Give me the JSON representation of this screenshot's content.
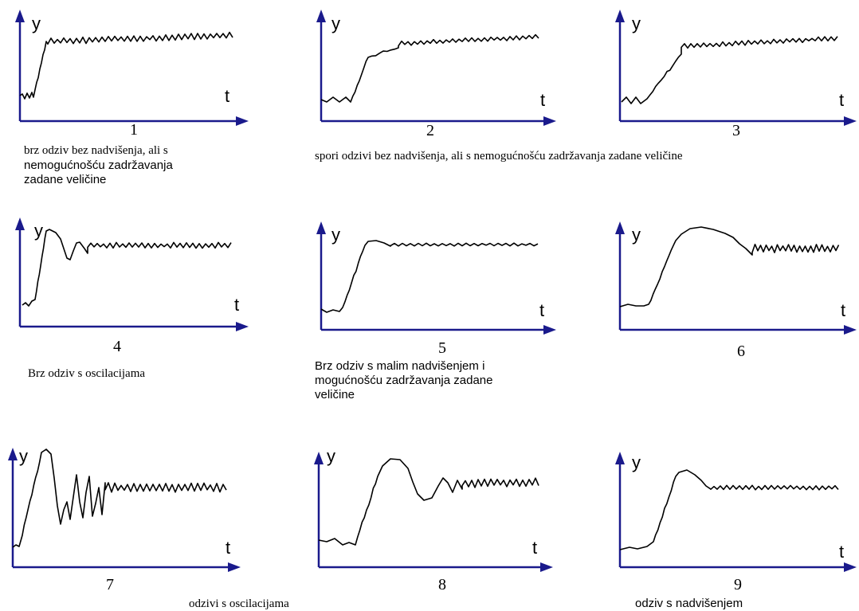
{
  "axis_color": "#1a1a8c",
  "curve_color": "#000000",
  "panels": [
    {
      "number": "1",
      "y_label": "y",
      "t_label": "t",
      "shape": "fast-noovershoot"
    },
    {
      "number": "2",
      "y_label": "y",
      "t_label": "t",
      "shape": "slow-1"
    },
    {
      "number": "3",
      "y_label": "y",
      "t_label": "t",
      "shape": "slow-2"
    },
    {
      "number": "4",
      "y_label": "y",
      "t_label": "t",
      "shape": "fast-osc"
    },
    {
      "number": "5",
      "y_label": "y",
      "t_label": "t",
      "shape": "small-overshoot"
    },
    {
      "number": "6",
      "y_label": "y",
      "t_label": "t",
      "shape": "big-overshoot-noise"
    },
    {
      "number": "7",
      "y_label": "y",
      "t_label": "t",
      "shape": "osc-strong"
    },
    {
      "number": "8",
      "y_label": "y",
      "t_label": "t",
      "shape": "osc-wave"
    },
    {
      "number": "9",
      "y_label": "y",
      "t_label": "t",
      "shape": "overshoot"
    }
  ],
  "captions": {
    "c1": [
      "brz odziv bez nadvišenja, ali s",
      "nemogućnošću zadržavanja",
      "zadane veličine"
    ],
    "c23": "spori odzivi bez nadvišenja, ali s nemogućnošću zadržavanja zadane veličine",
    "c4": "Brz odziv s oscilacijama",
    "c5": [
      "Brz odziv s malim nadvišenjem i",
      "mogućnošću zadržavanja zadane",
      "veličine"
    ],
    "c78": "odzivi s oscilacijama",
    "c9": "odziv s  nadvišenjem"
  }
}
